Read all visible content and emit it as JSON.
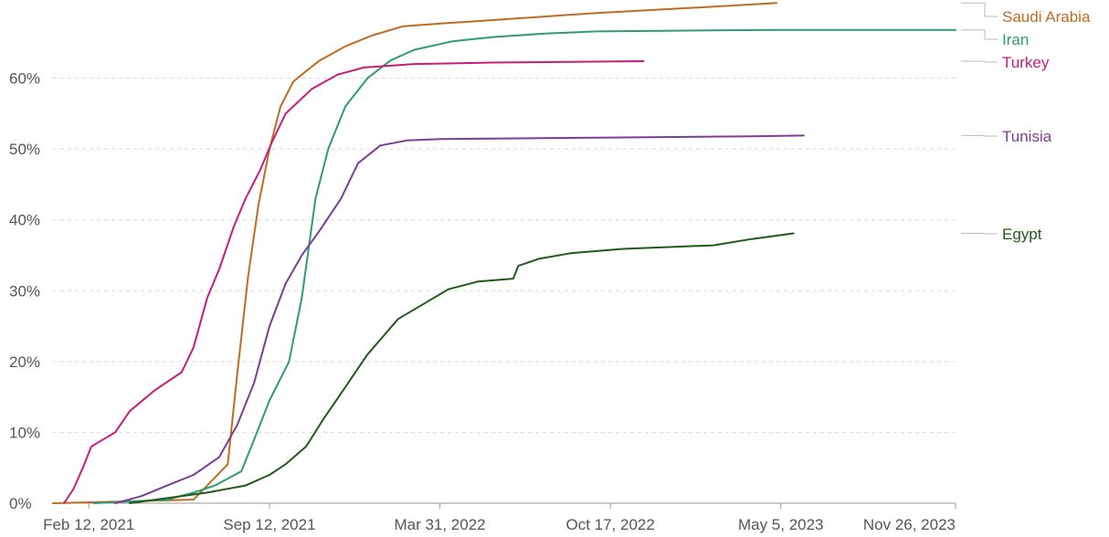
{
  "chart_data": {
    "type": "line",
    "title": "",
    "xlabel": "",
    "ylabel": "",
    "ylim": [
      0,
      70
    ],
    "y_ticks": [
      0,
      10,
      20,
      30,
      40,
      50,
      60
    ],
    "y_tick_labels": [
      "0%",
      "10%",
      "20%",
      "30%",
      "40%",
      "50%",
      "60%"
    ],
    "x_range": [
      "2021-01-01",
      "2023-11-26"
    ],
    "x_ticks": [
      "2021-02-12",
      "2021-09-12",
      "2022-03-31",
      "2022-10-17",
      "2023-05-05",
      "2023-11-26"
    ],
    "x_tick_labels": [
      "Feb 12, 2021",
      "Sep 12, 2021",
      "Mar 31, 2022",
      "Oct 17, 2022",
      "May 5, 2023",
      "Nov 26, 2023"
    ],
    "grid": true,
    "legend_placement": "right",
    "series": [
      {
        "name": "Saudi Arabia",
        "color": "#c06b20",
        "points": [
          [
            "2021-01-01",
            0
          ],
          [
            "2021-06-15",
            0.5
          ],
          [
            "2021-07-25",
            5.5
          ],
          [
            "2021-08-05",
            18
          ],
          [
            "2021-08-18",
            32
          ],
          [
            "2021-08-30",
            42
          ],
          [
            "2021-09-12",
            50
          ],
          [
            "2021-09-25",
            56
          ],
          [
            "2021-10-10",
            59.5
          ],
          [
            "2021-10-25",
            61
          ],
          [
            "2021-11-10",
            62.5
          ],
          [
            "2021-12-10",
            64.5
          ],
          [
            "2022-01-10",
            66
          ],
          [
            "2022-02-15",
            67.3
          ],
          [
            "2022-04-01",
            67.7
          ],
          [
            "2022-06-01",
            68.2
          ],
          [
            "2022-08-01",
            68.7
          ],
          [
            "2022-10-01",
            69.2
          ],
          [
            "2022-12-01",
            69.6
          ],
          [
            "2023-02-01",
            70.0
          ],
          [
            "2023-04-01",
            70.4
          ],
          [
            "2023-04-30",
            70.6
          ]
        ]
      },
      {
        "name": "Iran",
        "color": "#2e9a78",
        "points": [
          [
            "2021-02-18",
            0
          ],
          [
            "2021-05-15",
            0.5
          ],
          [
            "2021-06-15",
            1.5
          ],
          [
            "2021-07-10",
            2.5
          ],
          [
            "2021-08-10",
            4.5
          ],
          [
            "2021-08-25",
            9
          ],
          [
            "2021-09-12",
            14.5
          ],
          [
            "2021-10-05",
            20
          ],
          [
            "2021-10-20",
            29
          ],
          [
            "2021-11-05",
            43
          ],
          [
            "2021-11-20",
            50
          ],
          [
            "2021-12-10",
            56
          ],
          [
            "2022-01-05",
            60
          ],
          [
            "2022-02-01",
            62.5
          ],
          [
            "2022-03-01",
            64
          ],
          [
            "2022-04-15",
            65.2
          ],
          [
            "2022-06-01",
            65.8
          ],
          [
            "2022-08-01",
            66.3
          ],
          [
            "2022-10-01",
            66.6
          ],
          [
            "2023-01-01",
            66.7
          ],
          [
            "2023-05-01",
            66.8
          ],
          [
            "2023-11-26",
            66.8
          ]
        ]
      },
      {
        "name": "Turkey",
        "color": "#c81c7a",
        "points": [
          [
            "2021-01-14",
            0
          ],
          [
            "2021-01-25",
            2
          ],
          [
            "2021-02-05",
            5
          ],
          [
            "2021-02-15",
            8
          ],
          [
            "2021-03-01",
            9
          ],
          [
            "2021-03-15",
            10
          ],
          [
            "2021-04-01",
            13
          ],
          [
            "2021-05-01",
            16
          ],
          [
            "2021-06-01",
            18.5
          ],
          [
            "2021-06-15",
            22
          ],
          [
            "2021-07-01",
            29
          ],
          [
            "2021-07-15",
            33
          ],
          [
            "2021-08-01",
            39
          ],
          [
            "2021-08-15",
            43
          ],
          [
            "2021-09-01",
            47
          ],
          [
            "2021-09-15",
            51
          ],
          [
            "2021-10-01",
            55
          ],
          [
            "2021-11-01",
            58.5
          ],
          [
            "2021-12-01",
            60.5
          ],
          [
            "2022-01-01",
            61.5
          ],
          [
            "2022-03-01",
            62
          ],
          [
            "2022-06-01",
            62.2
          ],
          [
            "2022-09-01",
            62.3
          ],
          [
            "2022-11-25",
            62.4
          ]
        ]
      },
      {
        "name": "Tunisia",
        "color": "#7a3e97",
        "points": [
          [
            "2021-03-15",
            0
          ],
          [
            "2021-04-15",
            1
          ],
          [
            "2021-05-15",
            2.5
          ],
          [
            "2021-06-15",
            4
          ],
          [
            "2021-07-15",
            6.5
          ],
          [
            "2021-08-05",
            11
          ],
          [
            "2021-08-25",
            17
          ],
          [
            "2021-09-12",
            25
          ],
          [
            "2021-10-01",
            31
          ],
          [
            "2021-10-20",
            35
          ],
          [
            "2021-11-10",
            38.5
          ],
          [
            "2021-12-05",
            43
          ],
          [
            "2021-12-25",
            48
          ],
          [
            "2022-01-20",
            50.5
          ],
          [
            "2022-02-20",
            51.2
          ],
          [
            "2022-04-01",
            51.4
          ],
          [
            "2022-07-01",
            51.5
          ],
          [
            "2022-10-01",
            51.6
          ],
          [
            "2023-01-01",
            51.7
          ],
          [
            "2023-04-01",
            51.8
          ],
          [
            "2023-06-01",
            51.9
          ]
        ]
      },
      {
        "name": "Egypt",
        "color": "#1f5a1a",
        "points": [
          [
            "2021-04-01",
            0
          ],
          [
            "2021-07-01",
            1.5
          ],
          [
            "2021-08-15",
            2.5
          ],
          [
            "2021-09-12",
            4
          ],
          [
            "2021-10-01",
            5.5
          ],
          [
            "2021-10-25",
            8
          ],
          [
            "2021-11-15",
            12
          ],
          [
            "2021-12-05",
            15.5
          ],
          [
            "2022-01-05",
            21
          ],
          [
            "2022-02-10",
            26
          ],
          [
            "2022-03-10",
            28
          ],
          [
            "2022-04-10",
            30.2
          ],
          [
            "2022-05-15",
            31.3
          ],
          [
            "2022-06-15",
            31.6
          ],
          [
            "2022-06-25",
            31.7
          ],
          [
            "2022-07-01",
            33.5
          ],
          [
            "2022-07-25",
            34.5
          ],
          [
            "2022-09-01",
            35.3
          ],
          [
            "2022-11-01",
            35.9
          ],
          [
            "2023-01-01",
            36.2
          ],
          [
            "2023-02-15",
            36.4
          ],
          [
            "2023-04-01",
            37.3
          ],
          [
            "2023-05-20",
            38.1
          ]
        ]
      }
    ]
  }
}
